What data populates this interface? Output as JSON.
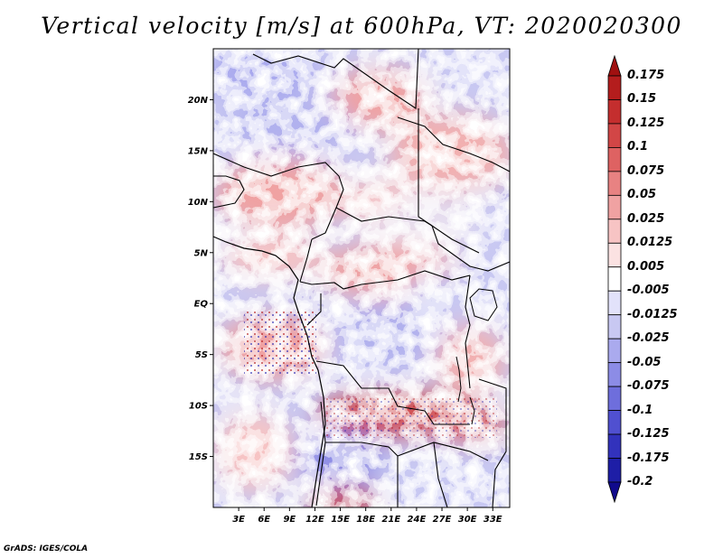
{
  "title": "Vertical velocity [m/s] at 600hPa, VT: 2020020300",
  "credit": "GrADS: IGES/COLA",
  "map": {
    "lat_range": [
      -20,
      25
    ],
    "lon_range": [
      0,
      35
    ],
    "lat_ticks": [
      {
        "value": 20,
        "label": "20N"
      },
      {
        "value": 15,
        "label": "15N"
      },
      {
        "value": 10,
        "label": "10N"
      },
      {
        "value": 5,
        "label": "5N"
      },
      {
        "value": 0,
        "label": "EQ"
      },
      {
        "value": -5,
        "label": "5S"
      },
      {
        "value": -10,
        "label": "10S"
      },
      {
        "value": -15,
        "label": "15S"
      }
    ],
    "lon_ticks": [
      {
        "value": 3,
        "label": "3E"
      },
      {
        "value": 6,
        "label": "6E"
      },
      {
        "value": 9,
        "label": "9E"
      },
      {
        "value": 12,
        "label": "12E"
      },
      {
        "value": 15,
        "label": "15E"
      },
      {
        "value": 18,
        "label": "18E"
      },
      {
        "value": 21,
        "label": "21E"
      },
      {
        "value": 24,
        "label": "24E"
      },
      {
        "value": 27,
        "label": "27E"
      },
      {
        "value": 30,
        "label": "30E"
      },
      {
        "value": 33,
        "label": "33E"
      }
    ]
  },
  "colorbar": {
    "labels": [
      "0.175",
      "0.15",
      "0.125",
      "0.1",
      "0.075",
      "0.05",
      "0.025",
      "0.0125",
      "0.005",
      "-0.005",
      "-0.0125",
      "-0.025",
      "-0.05",
      "-0.075",
      "-0.1",
      "-0.125",
      "-0.175",
      "-0.2"
    ],
    "colors": [
      "#a01010",
      "#b41d1d",
      "#c42e2e",
      "#d24646",
      "#de6262",
      "#e88282",
      "#f0a2a2",
      "#f7c4c4",
      "#fbe2e2",
      "#ffffff",
      "#e2e2fa",
      "#c8c8f2",
      "#aaaaee",
      "#8c8ce6",
      "#6e6edc",
      "#5050d0",
      "#3232bc",
      "#1e1ea6",
      "#100a8c"
    ]
  }
}
